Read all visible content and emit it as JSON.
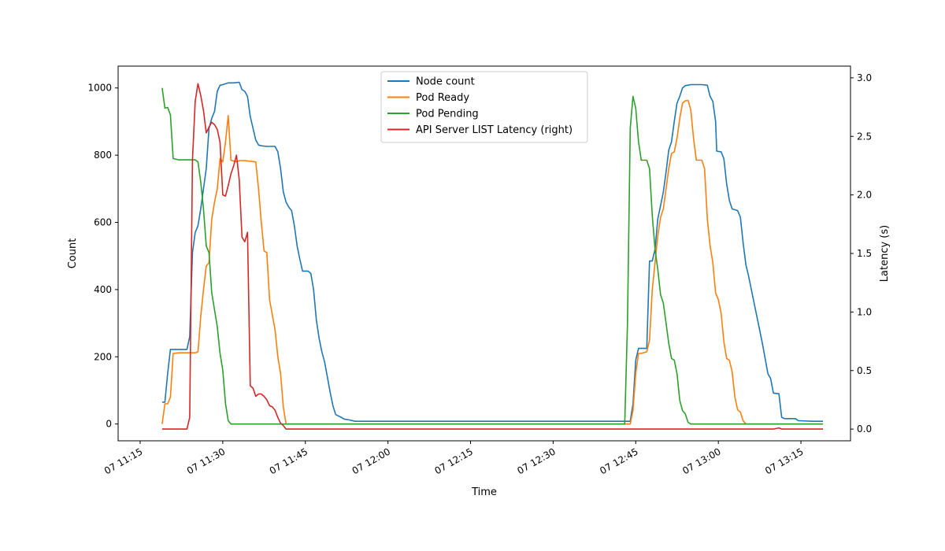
{
  "chart_data": {
    "type": "line",
    "title": "",
    "xlabel": "Time",
    "ylabel": "Count",
    "y2label": "Latency (s)",
    "xlim": [
      "11:11",
      "13:24"
    ],
    "ylim": [
      -50,
      1065
    ],
    "y2lim": [
      -0.1,
      3.1
    ],
    "x_ticks": [
      "11:15",
      "11:30",
      "11:45",
      "12:00",
      "12:15",
      "12:30",
      "12:45",
      "13:00",
      "13:15"
    ],
    "x_tick_labels": [
      "07 11:15",
      "07 11:30",
      "07 11:45",
      "07 12:00",
      "07 12:15",
      "07 12:30",
      "07 12:45",
      "07 13:00",
      "07 13:15"
    ],
    "y_ticks": [
      0,
      200,
      400,
      600,
      800,
      1000
    ],
    "y2_ticks": [
      0.0,
      0.5,
      1.0,
      1.5,
      2.0,
      2.5,
      3.0
    ],
    "y2_tick_labels": [
      "0.0",
      "0.5",
      "1.0",
      "1.5",
      "2.0",
      "2.5",
      "3.0"
    ],
    "grid": false,
    "legend_position": "top-center",
    "series": [
      {
        "name": "Node count",
        "axis": "left",
        "color": "#1f77b4",
        "points": [
          [
            "11:19",
            65
          ],
          [
            "11:19.5",
            65
          ],
          [
            "11:20",
            150
          ],
          [
            "11:20.5",
            222
          ],
          [
            "11:22",
            222
          ],
          [
            "11:23.5",
            222
          ],
          [
            "11:24",
            260
          ],
          [
            "11:24.5",
            510
          ],
          [
            "11:25",
            570
          ],
          [
            "11:25.5",
            590
          ],
          [
            "11:26",
            640
          ],
          [
            "11:26.5",
            700
          ],
          [
            "11:27",
            760
          ],
          [
            "11:27.5",
            880
          ],
          [
            "11:28",
            910
          ],
          [
            "11:28.5",
            930
          ],
          [
            "11:29",
            990
          ],
          [
            "11:29.5",
            1008
          ],
          [
            "11:30",
            1010
          ],
          [
            "11:31",
            1015
          ],
          [
            "11:32",
            1015
          ],
          [
            "11:33",
            1017
          ],
          [
            "11:33.5",
            995
          ],
          [
            "11:34",
            990
          ],
          [
            "11:34.5",
            975
          ],
          [
            "11:35",
            915
          ],
          [
            "11:35.5",
            880
          ],
          [
            "11:36",
            845
          ],
          [
            "11:36.5",
            830
          ],
          [
            "11:37",
            828
          ],
          [
            "11:38",
            826
          ],
          [
            "11:39.5",
            826
          ],
          [
            "11:40",
            810
          ],
          [
            "11:40.5",
            760
          ],
          [
            "11:41",
            690
          ],
          [
            "11:41.5",
            660
          ],
          [
            "11:42",
            645
          ],
          [
            "11:42.5",
            635
          ],
          [
            "11:43",
            590
          ],
          [
            "11:43.5",
            530
          ],
          [
            "11:44",
            490
          ],
          [
            "11:44.5",
            455
          ],
          [
            "11:45.5",
            455
          ],
          [
            "11:46",
            448
          ],
          [
            "11:46.5",
            400
          ],
          [
            "11:47",
            310
          ],
          [
            "11:47.5",
            255
          ],
          [
            "11:48",
            215
          ],
          [
            "11:48.5",
            185
          ],
          [
            "11:49",
            140
          ],
          [
            "11:49.5",
            95
          ],
          [
            "11:50",
            55
          ],
          [
            "11:50.5",
            28
          ],
          [
            "11:51.5",
            20
          ],
          [
            "11:52",
            15
          ],
          [
            "11:53",
            12
          ],
          [
            "11:54",
            8
          ],
          [
            "12:30",
            8
          ],
          [
            "12:44",
            8
          ],
          [
            "12:44.5",
            60
          ],
          [
            "12:45",
            190
          ],
          [
            "12:45.5",
            225
          ],
          [
            "12:47",
            225
          ],
          [
            "12:47.5",
            485
          ],
          [
            "12:48",
            485
          ],
          [
            "12:48.5",
            520
          ],
          [
            "12:49",
            610
          ],
          [
            "12:49.5",
            650
          ],
          [
            "12:50",
            690
          ],
          [
            "12:50.5",
            750
          ],
          [
            "12:51",
            815
          ],
          [
            "12:51.5",
            840
          ],
          [
            "12:52",
            900
          ],
          [
            "12:52.5",
            955
          ],
          [
            "12:53",
            975
          ],
          [
            "12:53.5",
            1000
          ],
          [
            "12:54",
            1007
          ],
          [
            "12:55",
            1010
          ],
          [
            "12:57",
            1010
          ],
          [
            "12:58",
            1008
          ],
          [
            "12:58.5",
            975
          ],
          [
            "12:59",
            960
          ],
          [
            "12:59.5",
            900
          ],
          [
            "12:59.7",
            812
          ],
          [
            "13:00.5",
            810
          ],
          [
            "13:01",
            790
          ],
          [
            "13:01.5",
            715
          ],
          [
            "13:02",
            665
          ],
          [
            "13:02.5",
            640
          ],
          [
            "13:03.5",
            635
          ],
          [
            "13:04",
            615
          ],
          [
            "13:04.5",
            540
          ],
          [
            "13:05",
            475
          ],
          [
            "13:05.5",
            440
          ],
          [
            "13:06",
            400
          ],
          [
            "13:06.5",
            360
          ],
          [
            "13:07",
            320
          ],
          [
            "13:08",
            240
          ],
          [
            "13:08.5",
            195
          ],
          [
            "13:09",
            150
          ],
          [
            "13:09.5",
            135
          ],
          [
            "13:10",
            92
          ],
          [
            "13:11",
            90
          ],
          [
            "13:11.5",
            20
          ],
          [
            "13:12",
            16
          ],
          [
            "13:14",
            16
          ],
          [
            "13:14.5",
            10
          ],
          [
            "13:17",
            8
          ],
          [
            "13:19",
            8
          ]
        ]
      },
      {
        "name": "Pod Ready",
        "axis": "left",
        "color": "#ff7f0e",
        "points": [
          [
            "11:19",
            0
          ],
          [
            "11:19.5",
            60
          ],
          [
            "11:20",
            60
          ],
          [
            "11:20.5",
            80
          ],
          [
            "11:21",
            210
          ],
          [
            "11:22",
            212
          ],
          [
            "11:25",
            212
          ],
          [
            "11:25.5",
            215
          ],
          [
            "11:26",
            320
          ],
          [
            "11:26.5",
            400
          ],
          [
            "11:27",
            470
          ],
          [
            "11:27.5",
            480
          ],
          [
            "11:28",
            610
          ],
          [
            "11:28.5",
            660
          ],
          [
            "11:29",
            700
          ],
          [
            "11:29.5",
            790
          ],
          [
            "11:30",
            780
          ],
          [
            "11:30.5",
            840
          ],
          [
            "11:31",
            918
          ],
          [
            "11:31.5",
            785
          ],
          [
            "11:32.5",
            780
          ],
          [
            "11:33",
            784
          ],
          [
            "11:34",
            784
          ],
          [
            "11:36",
            780
          ],
          [
            "11:36.5",
            700
          ],
          [
            "11:37",
            600
          ],
          [
            "11:37.5",
            515
          ],
          [
            "11:38",
            510
          ],
          [
            "11:38.5",
            370
          ],
          [
            "11:39",
            325
          ],
          [
            "11:39.5",
            280
          ],
          [
            "11:40",
            200
          ],
          [
            "11:40.5",
            150
          ],
          [
            "11:41",
            50
          ],
          [
            "11:41.5",
            0
          ],
          [
            "12:44",
            0
          ],
          [
            "12:44.5",
            40
          ],
          [
            "12:45",
            150
          ],
          [
            "12:45.5",
            210
          ],
          [
            "12:46",
            210
          ],
          [
            "12:47",
            215
          ],
          [
            "12:47.5",
            250
          ],
          [
            "12:48",
            400
          ],
          [
            "12:48.5",
            480
          ],
          [
            "12:49",
            560
          ],
          [
            "12:49.5",
            615
          ],
          [
            "12:50",
            640
          ],
          [
            "12:50.5",
            700
          ],
          [
            "12:51",
            760
          ],
          [
            "12:51.5",
            805
          ],
          [
            "12:52",
            810
          ],
          [
            "12:52.5",
            850
          ],
          [
            "12:53",
            910
          ],
          [
            "12:53.5",
            955
          ],
          [
            "12:54",
            962
          ],
          [
            "12:54.5",
            963
          ],
          [
            "12:55",
            935
          ],
          [
            "12:55.5",
            850
          ],
          [
            "12:56",
            785
          ],
          [
            "12:57",
            785
          ],
          [
            "12:57.5",
            760
          ],
          [
            "12:58",
            610
          ],
          [
            "12:58.5",
            530
          ],
          [
            "12:59",
            480
          ],
          [
            "12:59.5",
            390
          ],
          [
            "13:00",
            370
          ],
          [
            "13:00.5",
            330
          ],
          [
            "13:01",
            245
          ],
          [
            "13:01.5",
            195
          ],
          [
            "13:02",
            190
          ],
          [
            "13:02.5",
            155
          ],
          [
            "13:03",
            80
          ],
          [
            "13:03.5",
            42
          ],
          [
            "13:04",
            35
          ],
          [
            "13:04.5",
            10
          ],
          [
            "13:05",
            0
          ],
          [
            "13:19",
            0
          ]
        ]
      },
      {
        "name": "Pod Pending",
        "axis": "left",
        "color": "#2ca02c",
        "points": [
          [
            "11:19",
            1000
          ],
          [
            "11:19.5",
            940
          ],
          [
            "11:20",
            942
          ],
          [
            "11:20.5",
            920
          ],
          [
            "11:21",
            790
          ],
          [
            "11:22",
            786
          ],
          [
            "11:23",
            786
          ],
          [
            "11:25",
            786
          ],
          [
            "11:25.5",
            780
          ],
          [
            "11:26",
            720
          ],
          [
            "11:26.5",
            640
          ],
          [
            "11:27",
            530
          ],
          [
            "11:27.5",
            510
          ],
          [
            "11:28",
            390
          ],
          [
            "11:28.5",
            340
          ],
          [
            "11:29",
            290
          ],
          [
            "11:29.5",
            210
          ],
          [
            "11:30",
            160
          ],
          [
            "11:30.5",
            60
          ],
          [
            "11:31",
            10
          ],
          [
            "11:31.5",
            0
          ],
          [
            "12:43",
            0
          ],
          [
            "12:43.5",
            300
          ],
          [
            "12:44",
            880
          ],
          [
            "12:44.5",
            975
          ],
          [
            "12:45",
            940
          ],
          [
            "12:45.5",
            840
          ],
          [
            "12:46",
            785
          ],
          [
            "12:47",
            785
          ],
          [
            "12:47.5",
            760
          ],
          [
            "12:48",
            620
          ],
          [
            "12:48.5",
            520
          ],
          [
            "12:49",
            460
          ],
          [
            "12:49.5",
            385
          ],
          [
            "12:50",
            360
          ],
          [
            "12:50.5",
            300
          ],
          [
            "12:51",
            240
          ],
          [
            "12:51.5",
            195
          ],
          [
            "12:52",
            190
          ],
          [
            "12:52.5",
            150
          ],
          [
            "12:53",
            70
          ],
          [
            "12:53.5",
            40
          ],
          [
            "12:54",
            30
          ],
          [
            "12:54.5",
            5
          ],
          [
            "12:55",
            0
          ],
          [
            "13:19",
            0
          ]
        ]
      },
      {
        "name": "API Server LIST Latency (right)",
        "axis": "right",
        "color": "#d62728",
        "points": [
          [
            "11:19",
            0.0
          ],
          [
            "11:20",
            0.0
          ],
          [
            "11:22",
            0.0
          ],
          [
            "11:23.5",
            0.0
          ],
          [
            "11:24",
            0.1
          ],
          [
            "11:24.5",
            2.3
          ],
          [
            "11:25",
            2.8
          ],
          [
            "11:25.5",
            2.95
          ],
          [
            "11:26",
            2.85
          ],
          [
            "11:26.5",
            2.72
          ],
          [
            "11:27",
            2.53
          ],
          [
            "11:27.5",
            2.58
          ],
          [
            "11:28",
            2.62
          ],
          [
            "11:28.5",
            2.6
          ],
          [
            "11:29",
            2.56
          ],
          [
            "11:29.5",
            2.45
          ],
          [
            "11:30",
            2.0
          ],
          [
            "11:30.5",
            1.99
          ],
          [
            "11:31",
            2.08
          ],
          [
            "11:31.5",
            2.18
          ],
          [
            "11:32",
            2.25
          ],
          [
            "11:32.5",
            2.34
          ],
          [
            "11:33",
            2.13
          ],
          [
            "11:33.5",
            1.64
          ],
          [
            "11:34",
            1.6
          ],
          [
            "11:34.5",
            1.68
          ],
          [
            "11:35",
            0.37
          ],
          [
            "11:35.5",
            0.35
          ],
          [
            "11:36",
            0.28
          ],
          [
            "11:36.5",
            0.3
          ],
          [
            "11:37",
            0.3
          ],
          [
            "11:37.5",
            0.28
          ],
          [
            "11:38",
            0.25
          ],
          [
            "11:38.5",
            0.2
          ],
          [
            "11:39",
            0.19
          ],
          [
            "11:39.5",
            0.16
          ],
          [
            "11:40",
            0.1
          ],
          [
            "11:40.5",
            0.05
          ],
          [
            "11:41",
            0.03
          ],
          [
            "11:41.5",
            0.0
          ],
          [
            "12:00",
            0.0
          ],
          [
            "13:10",
            0.0
          ],
          [
            "13:11",
            0.01
          ],
          [
            "13:11.5",
            0.0
          ],
          [
            "13:19",
            0.0
          ]
        ]
      }
    ]
  }
}
